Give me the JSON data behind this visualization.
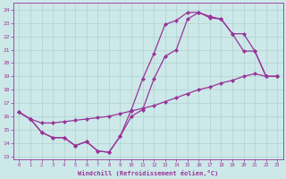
{
  "xlabel": "Windchill (Refroidissement éolien,°C)",
  "xlim": [
    -0.5,
    23.5
  ],
  "ylim": [
    12.8,
    24.5
  ],
  "xticks": [
    0,
    1,
    2,
    3,
    4,
    5,
    6,
    7,
    8,
    9,
    10,
    11,
    12,
    13,
    14,
    15,
    16,
    17,
    18,
    19,
    20,
    21,
    22,
    23
  ],
  "yticks": [
    13,
    14,
    15,
    16,
    17,
    18,
    19,
    20,
    21,
    22,
    23,
    24
  ],
  "bg_color": "#cce8e8",
  "line_color": "#993399",
  "grid_color": "#aacccc",
  "line1_x": [
    0,
    1,
    2,
    3,
    4,
    5,
    6,
    7,
    8,
    9,
    10,
    11,
    12,
    13,
    14,
    15,
    16,
    17,
    18,
    19,
    20,
    21,
    22,
    23
  ],
  "line1_y": [
    16.3,
    15.8,
    14.8,
    14.4,
    14.4,
    13.8,
    14.1,
    13.4,
    13.3,
    14.5,
    16.5,
    18.8,
    20.7,
    22.9,
    23.2,
    23.8,
    23.8,
    23.4,
    23.3,
    22.2,
    20.9,
    20.9,
    19.0,
    19.0
  ],
  "line2_x": [
    0,
    1,
    2,
    3,
    4,
    5,
    6,
    7,
    8,
    9,
    10,
    11,
    12,
    13,
    14,
    15,
    16,
    17,
    18,
    19,
    20,
    21,
    22,
    23
  ],
  "line2_y": [
    16.3,
    15.8,
    14.8,
    14.4,
    14.4,
    13.8,
    14.1,
    13.4,
    13.3,
    14.5,
    16.0,
    16.5,
    18.8,
    20.5,
    21.0,
    23.3,
    23.8,
    23.5,
    23.3,
    22.2,
    22.2,
    20.9,
    19.0,
    19.0
  ],
  "line3_x": [
    0,
    1,
    2,
    3,
    4,
    5,
    6,
    7,
    8,
    9,
    10,
    11,
    12,
    13,
    14,
    15,
    16,
    17,
    18,
    19,
    20,
    21,
    22,
    23
  ],
  "line3_y": [
    16.3,
    15.8,
    15.5,
    15.5,
    15.6,
    15.7,
    15.8,
    15.9,
    16.0,
    16.2,
    16.4,
    16.6,
    16.8,
    17.1,
    17.4,
    17.7,
    18.0,
    18.2,
    18.5,
    18.7,
    19.0,
    19.2,
    19.0,
    19.0
  ],
  "markersize": 2.5,
  "linewidth": 0.9
}
